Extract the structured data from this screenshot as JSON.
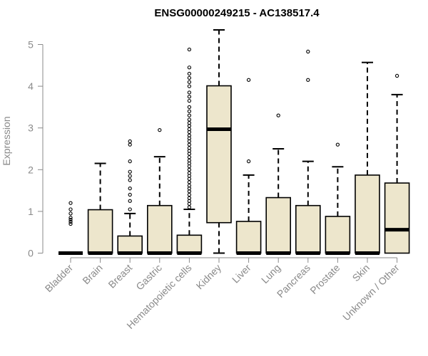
{
  "chart_data": {
    "type": "box",
    "title": "ENSG00000249215 - AC138517.4",
    "xlabel": "",
    "ylabel": "Expression",
    "ylim": [
      0,
      5.4
    ],
    "yticks": [
      "0",
      "1",
      "2",
      "3",
      "4",
      "5"
    ],
    "box_fill": "#ede6cc",
    "box_stroke": "#000000",
    "categories": [
      "Bladder",
      "Brain",
      "Breast",
      "Gastric",
      "Hematopoietic cells",
      "Kidney",
      "Liver",
      "Lung",
      "Pancreas",
      "Prostate",
      "Skin",
      "Unknown / Other"
    ],
    "boxes": [
      {
        "category": "Bladder",
        "whisker_low": 0,
        "q1": 0,
        "median": 0,
        "q3": 0,
        "whisker_high": 0,
        "outliers": [
          0.7,
          0.75,
          0.8,
          0.85,
          0.95,
          1.05,
          1.2
        ]
      },
      {
        "category": "Brain",
        "whisker_low": 0,
        "q1": 0,
        "median": 0,
        "q3": 1.04,
        "whisker_high": 2.15,
        "outliers": []
      },
      {
        "category": "Breast",
        "whisker_low": 0,
        "q1": 0,
        "median": 0,
        "q3": 0.41,
        "whisker_high": 0.95,
        "outliers": [
          1.05,
          1.25,
          1.4,
          1.55,
          1.75,
          1.85,
          1.95,
          2.2,
          2.6,
          2.68
        ]
      },
      {
        "category": "Gastric",
        "whisker_low": 0,
        "q1": 0,
        "median": 0,
        "q3": 1.14,
        "whisker_high": 2.31,
        "outliers": [
          2.95
        ]
      },
      {
        "category": "Hematopoietic cells",
        "whisker_low": 0,
        "q1": 0,
        "median": 0,
        "q3": 0.43,
        "whisker_high": 1.05,
        "outliers": [
          1.1,
          1.18,
          1.25,
          1.32,
          1.4,
          1.48,
          1.55,
          1.62,
          1.7,
          1.78,
          1.85,
          1.92,
          2.0,
          2.08,
          2.15,
          2.22,
          2.3,
          2.38,
          2.45,
          2.52,
          2.6,
          2.68,
          2.75,
          2.82,
          2.9,
          2.97,
          3.05,
          3.12,
          3.2,
          3.3,
          3.4,
          3.5,
          3.65,
          3.75,
          3.85,
          4.0,
          4.1,
          4.2,
          4.3,
          4.45,
          4.88
        ]
      },
      {
        "category": "Kidney",
        "whisker_low": 0,
        "q1": 0.73,
        "median": 2.97,
        "q3": 4.01,
        "whisker_high": 5.35,
        "outliers": []
      },
      {
        "category": "Liver",
        "whisker_low": 0,
        "q1": 0,
        "median": 0,
        "q3": 0.76,
        "whisker_high": 1.87,
        "outliers": [
          2.2,
          4.15
        ]
      },
      {
        "category": "Lung",
        "whisker_low": 0,
        "q1": 0,
        "median": 0,
        "q3": 1.33,
        "whisker_high": 2.5,
        "outliers": [
          3.3
        ]
      },
      {
        "category": "Pancreas",
        "whisker_low": 0,
        "q1": 0,
        "median": 0,
        "q3": 1.14,
        "whisker_high": 2.2,
        "outliers": [
          4.15,
          4.83
        ]
      },
      {
        "category": "Prostate",
        "whisker_low": 0,
        "q1": 0,
        "median": 0,
        "q3": 0.88,
        "whisker_high": 2.07,
        "outliers": [
          2.6
        ]
      },
      {
        "category": "Skin",
        "whisker_low": 0,
        "q1": 0,
        "median": 0,
        "q3": 1.87,
        "whisker_high": 4.57,
        "outliers": []
      },
      {
        "category": "Unknown / Other",
        "whisker_low": 0,
        "q1": 0,
        "median": 0.56,
        "q3": 1.68,
        "whisker_high": 3.8,
        "outliers": [
          4.25
        ]
      }
    ],
    "grid": false,
    "legend": "none"
  }
}
